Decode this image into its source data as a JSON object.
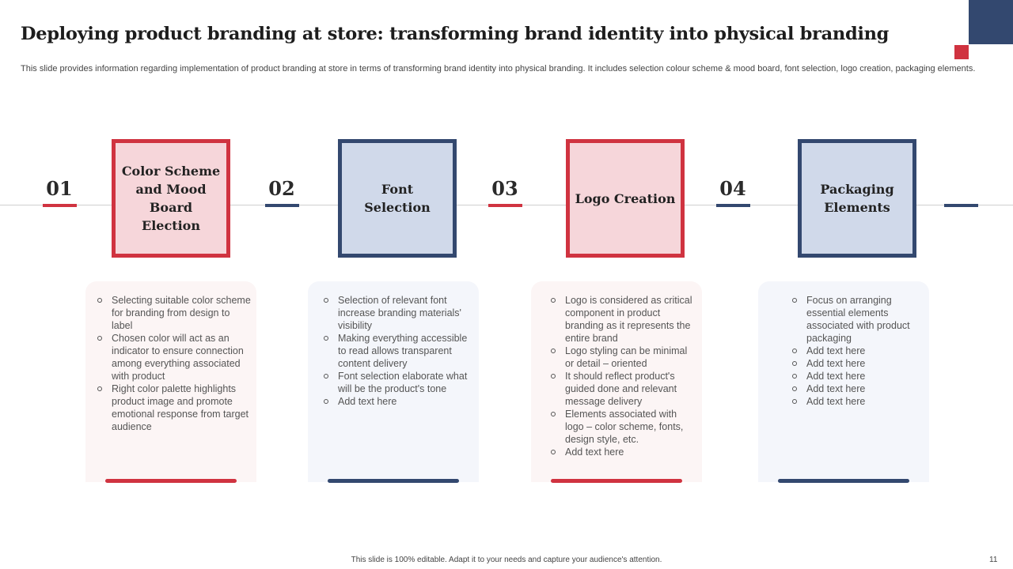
{
  "slide": {
    "title": "Deploying product branding at store: transforming brand identity into physical branding",
    "subtitle": "This slide provides information regarding implementation of product branding at store in terms of transforming brand identity into physical branding. It includes selection colour scheme & mood board, font selection, logo creation, packaging elements.",
    "footer": "This slide is 100% editable.  Adapt it to your needs and capture your audience's attention.",
    "page_number": "11"
  },
  "colors": {
    "red": "#d03340",
    "navy": "#33486f",
    "pink_fill": "#f6d6da",
    "blue_fill": "#d0d9ea"
  },
  "steps": [
    {
      "number": "01",
      "label": "Color Scheme and Mood Board Election",
      "points": [
        "Selecting suitable color scheme for branding from design to label",
        "Chosen color will act as an indicator to ensure connection among everything  associated with product",
        "Right color palette highlights product image and promote emotional response from target audience"
      ]
    },
    {
      "number": "02",
      "label": "Font Selection",
      "points": [
        "Selection of relevant  font increase branding materials' visibility",
        "Making everything accessible to read allows transparent content delivery",
        "Font selection elaborate what will be the product's tone",
        "Add text here"
      ]
    },
    {
      "number": "03",
      "label": "Logo Creation",
      "points": [
        "Logo is considered as critical component  in product branding as it represents the entire brand",
        "Logo styling can be minimal or detail – oriented",
        "It should reflect product's guided done and relevant message delivery",
        "Elements associated with logo – color scheme, fonts, design style, etc.",
        "Add text here"
      ]
    },
    {
      "number": "04",
      "label": "Packaging Elements",
      "points": [
        "Focus on arranging essential elements associated with product packaging",
        "Add text here",
        "Add text here",
        "Add text here",
        "Add text here",
        "Add text here"
      ]
    }
  ]
}
